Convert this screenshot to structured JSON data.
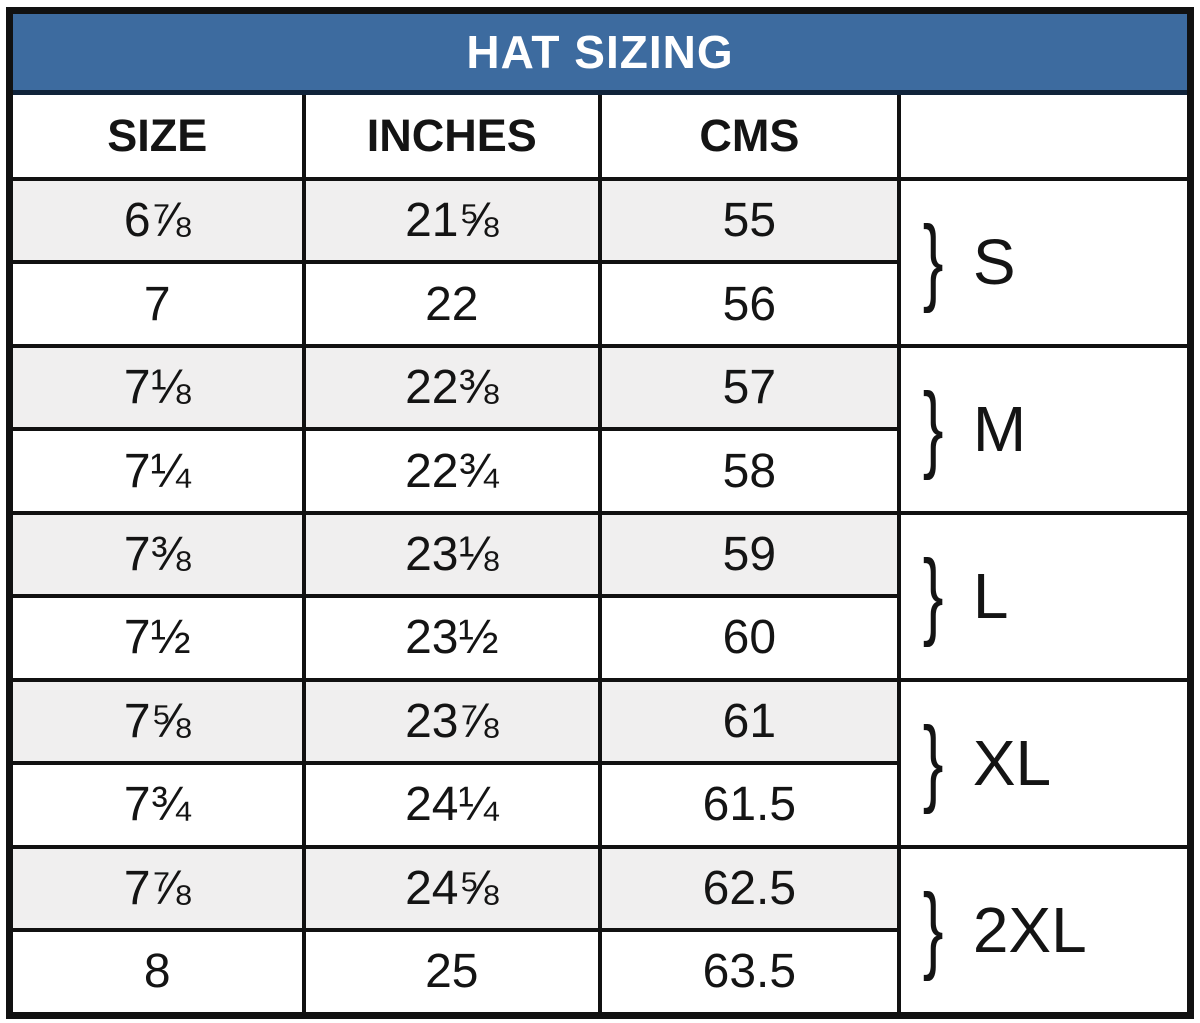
{
  "title": "HAT SIZING",
  "columns": {
    "size": "SIZE",
    "inches": "INCHES",
    "cms": "CMS",
    "group": ""
  },
  "rows": [
    {
      "size": "6⅞",
      "inches": "21⅝",
      "cms": "55"
    },
    {
      "size": "7",
      "inches": "22",
      "cms": "56"
    },
    {
      "size": "7⅛",
      "inches": "22⅜",
      "cms": "57"
    },
    {
      "size": "7¼",
      "inches": "22¾",
      "cms": "58"
    },
    {
      "size": "7⅜",
      "inches": "23⅛",
      "cms": "59"
    },
    {
      "size": "7½",
      "inches": "23½",
      "cms": "60"
    },
    {
      "size": "7⅝",
      "inches": "23⅞",
      "cms": "61"
    },
    {
      "size": "7¾",
      "inches": "24¼",
      "cms": "61.5"
    },
    {
      "size": "7⅞",
      "inches": "24⅝",
      "cms": "62.5"
    },
    {
      "size": "8",
      "inches": "25",
      "cms": "63.5"
    }
  ],
  "groups": [
    {
      "brace": "}",
      "label": "S"
    },
    {
      "brace": "}",
      "label": "M"
    },
    {
      "brace": "}",
      "label": "L"
    },
    {
      "brace": "}",
      "label": "XL"
    },
    {
      "brace": "}",
      "label": "2XL"
    }
  ],
  "colors": {
    "header_bg": "#3d6b9f",
    "header_text": "#ffffff",
    "shaded_row_bg": "#f0efef",
    "border": "#111111",
    "body_text": "#141414"
  }
}
